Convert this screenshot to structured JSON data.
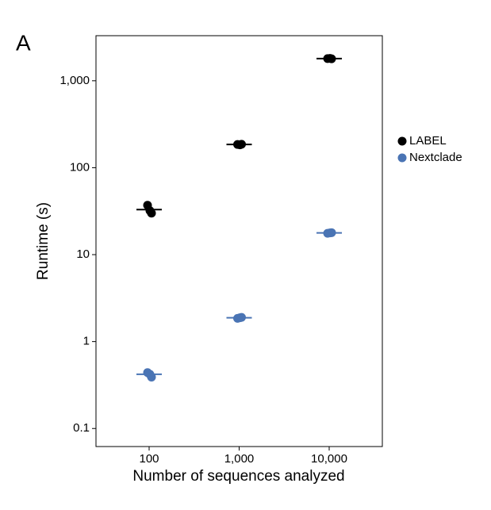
{
  "chart_data": {
    "type": "dot",
    "panel_label": "A",
    "x_label": "Number of sequences analyzed",
    "y_label": "Runtime (s)",
    "categories": [
      "100",
      "1,000",
      "10,000"
    ],
    "log_scale_y": true,
    "ylim": [
      0.062,
      3300
    ],
    "yticks": [
      0.1,
      1,
      10,
      100,
      {
        "value": 1000,
        "label": "1,000"
      }
    ],
    "legend": "right",
    "series": [
      {
        "name": "LABEL",
        "color": "#000000",
        "values": [
          33,
          185,
          1800
        ],
        "points": [
          [
            37,
            32,
            30
          ],
          [
            185,
            183,
            186
          ],
          [
            1800,
            1810,
            1790
          ]
        ]
      },
      {
        "name": "Nextclade",
        "color": "#4a74b4",
        "values": [
          0.42,
          1.88,
          17.8
        ],
        "points": [
          [
            0.44,
            0.42,
            0.39
          ],
          [
            1.85,
            1.88,
            1.9
          ],
          [
            17.6,
            17.8,
            17.9
          ]
        ]
      }
    ]
  }
}
